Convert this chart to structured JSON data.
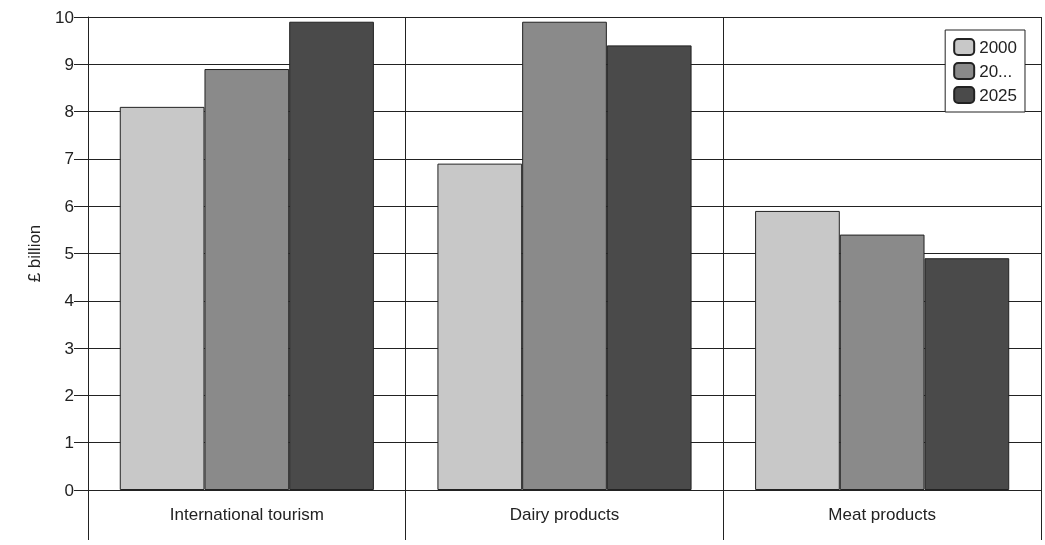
{
  "chart_data": {
    "type": "bar",
    "ylabel": "£ billion",
    "categories": [
      "International tourism",
      "Dairy products",
      "Meat products"
    ],
    "series": [
      {
        "name": "2000",
        "color": "#c8c8c8",
        "values": [
          8.1,
          6.9,
          5.9
        ]
      },
      {
        "name": "20...",
        "color": "#8a8a8a",
        "values": [
          8.9,
          9.9,
          5.4
        ]
      },
      {
        "name": "2025",
        "color": "#4a4a4a",
        "values": [
          9.9,
          9.4,
          4.9
        ]
      }
    ],
    "ylim": [
      0,
      10
    ],
    "yticks": [
      0,
      1,
      2,
      3,
      4,
      5,
      6,
      7,
      8,
      9,
      10
    ],
    "grid": true,
    "legend": "top right"
  }
}
